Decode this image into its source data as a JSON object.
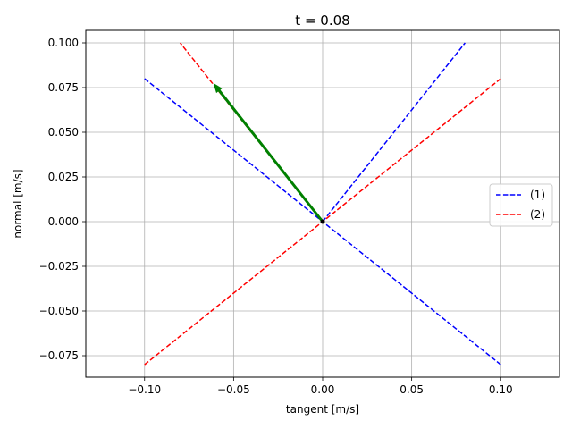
{
  "chart_data": {
    "type": "line",
    "title": "t = 0.08",
    "xlabel": "tangent [m/s]",
    "ylabel": "normal [m/s]",
    "xlim": [
      -0.133,
      0.133
    ],
    "ylim": [
      -0.087,
      0.107
    ],
    "xticks": [
      -0.1,
      -0.05,
      0.0,
      0.05,
      0.1
    ],
    "xtick_labels": [
      "−0.10",
      "−0.05",
      "0.00",
      "0.05",
      "0.10"
    ],
    "yticks": [
      -0.075,
      -0.05,
      -0.025,
      0.0,
      0.025,
      0.05,
      0.075,
      0.1
    ],
    "ytick_labels": [
      "−0.075",
      "−0.050",
      "−0.025",
      "0.000",
      "0.025",
      "0.050",
      "0.075",
      "0.100"
    ],
    "grid": true,
    "legend_position": "right",
    "series": [
      {
        "name": "(1)",
        "color": "#0000ff",
        "style": "dashed",
        "segments": [
          [
            [
              -0.1,
              0.08
            ],
            [
              0.1,
              -0.08
            ]
          ],
          [
            [
              0.0,
              0.0
            ],
            [
              0.08,
              0.1
            ]
          ]
        ]
      },
      {
        "name": "(2)",
        "color": "#ff0000",
        "style": "dashed",
        "segments": [
          [
            [
              -0.1,
              -0.08
            ],
            [
              0.1,
              0.08
            ]
          ],
          [
            [
              0.0,
              0.0
            ],
            [
              -0.08,
              0.1
            ]
          ]
        ]
      }
    ],
    "arrow": {
      "color": "#008000",
      "from": [
        0.0,
        0.0
      ],
      "to": [
        -0.061,
        0.077
      ]
    },
    "origin_marker": {
      "color": "#000000",
      "point": [
        0.0,
        0.0
      ]
    }
  }
}
